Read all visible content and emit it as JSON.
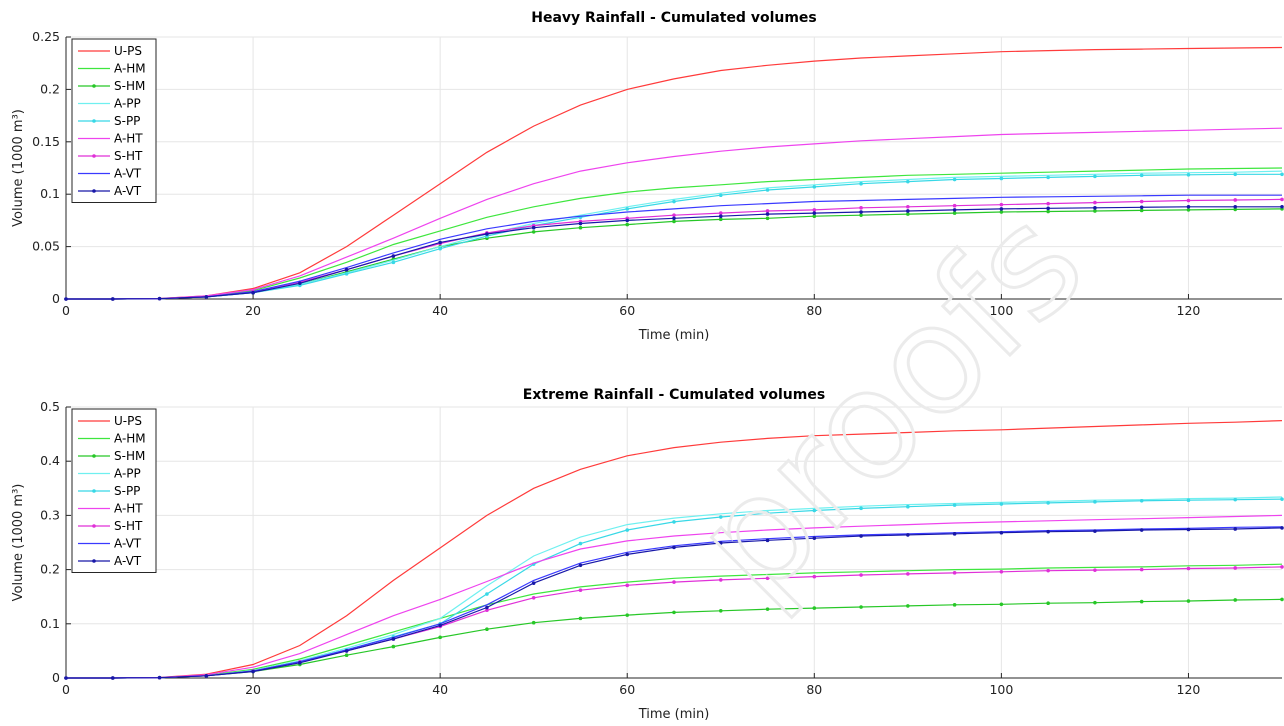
{
  "watermark_text": "proofs",
  "chart_data": [
    {
      "type": "line",
      "title": "Heavy Rainfall - Cumulated volumes",
      "xlabel": "Time (min)",
      "ylabel": "Volume (1000 m³)",
      "xlim": [
        0,
        130
      ],
      "ylim": [
        0,
        0.25
      ],
      "xticks": [
        0,
        20,
        40,
        60,
        80,
        100,
        120
      ],
      "xtick_labels": [
        "0",
        "20",
        "40",
        "60",
        "80",
        "100",
        "120"
      ],
      "yticks": [
        0,
        0.05,
        0.1,
        0.15,
        0.2,
        0.25
      ],
      "ytick_labels": [
        "0",
        "0.05",
        "0.1",
        "0.15",
        "0.2",
        "0.25"
      ],
      "grid": true,
      "legend_position": "top-left",
      "x": [
        0,
        5,
        10,
        15,
        20,
        25,
        30,
        35,
        40,
        45,
        50,
        55,
        60,
        65,
        70,
        75,
        80,
        85,
        90,
        95,
        100,
        105,
        110,
        115,
        120,
        125,
        130
      ],
      "series": [
        {
          "name": "U-PS",
          "color": "#ff3b3b",
          "marker": false,
          "values": [
            0,
            0,
            0.0005,
            0.003,
            0.01,
            0.025,
            0.05,
            0.08,
            0.11,
            0.14,
            0.165,
            0.185,
            0.2,
            0.21,
            0.218,
            0.223,
            0.227,
            0.23,
            0.232,
            0.234,
            0.236,
            0.237,
            0.238,
            0.2385,
            0.239,
            0.2395,
            0.24
          ]
        },
        {
          "name": "A-HM",
          "color": "#3ee63e",
          "marker": false,
          "values": [
            0,
            0,
            0.0004,
            0.002,
            0.008,
            0.02,
            0.035,
            0.052,
            0.065,
            0.078,
            0.088,
            0.096,
            0.102,
            0.106,
            0.109,
            0.112,
            0.114,
            0.116,
            0.118,
            0.119,
            0.12,
            0.121,
            0.122,
            0.123,
            0.124,
            0.1245,
            0.125
          ]
        },
        {
          "name": "S-HM",
          "color": "#27c727",
          "marker": true,
          "values": [
            0,
            0,
            0.0003,
            0.002,
            0.006,
            0.014,
            0.026,
            0.038,
            0.05,
            0.058,
            0.064,
            0.068,
            0.071,
            0.074,
            0.076,
            0.077,
            0.079,
            0.08,
            0.081,
            0.082,
            0.083,
            0.0835,
            0.084,
            0.0845,
            0.085,
            0.0855,
            0.086
          ]
        },
        {
          "name": "A-PP",
          "color": "#6ff0f0",
          "marker": false,
          "values": [
            0,
            0,
            0.0003,
            0.002,
            0.006,
            0.014,
            0.025,
            0.037,
            0.05,
            0.062,
            0.072,
            0.08,
            0.088,
            0.095,
            0.101,
            0.106,
            0.109,
            0.112,
            0.114,
            0.116,
            0.117,
            0.118,
            0.119,
            0.12,
            0.1205,
            0.121,
            0.122
          ]
        },
        {
          "name": "S-PP",
          "color": "#38d8e6",
          "marker": true,
          "values": [
            0,
            0,
            0.0003,
            0.002,
            0.006,
            0.013,
            0.024,
            0.035,
            0.048,
            0.06,
            0.07,
            0.078,
            0.086,
            0.093,
            0.099,
            0.104,
            0.107,
            0.11,
            0.112,
            0.114,
            0.115,
            0.116,
            0.117,
            0.118,
            0.1185,
            0.119,
            0.119
          ]
        },
        {
          "name": "A-HT",
          "color": "#ee44ee",
          "marker": false,
          "values": [
            0,
            0,
            0.0004,
            0.003,
            0.009,
            0.022,
            0.04,
            0.058,
            0.077,
            0.095,
            0.11,
            0.122,
            0.13,
            0.136,
            0.141,
            0.145,
            0.148,
            0.151,
            0.153,
            0.155,
            0.157,
            0.158,
            0.159,
            0.16,
            0.161,
            0.162,
            0.163
          ]
        },
        {
          "name": "S-HT",
          "color": "#e030d8",
          "marker": true,
          "values": [
            0,
            0,
            0.0003,
            0.002,
            0.007,
            0.016,
            0.028,
            0.041,
            0.053,
            0.063,
            0.07,
            0.074,
            0.077,
            0.08,
            0.082,
            0.084,
            0.085,
            0.087,
            0.088,
            0.089,
            0.09,
            0.091,
            0.092,
            0.093,
            0.094,
            0.0945,
            0.095
          ]
        },
        {
          "name": "A-VT",
          "color": "#3a3aff",
          "marker": false,
          "values": [
            0,
            0,
            0.0003,
            0.002,
            0.007,
            0.017,
            0.03,
            0.044,
            0.057,
            0.067,
            0.074,
            0.079,
            0.083,
            0.086,
            0.089,
            0.091,
            0.093,
            0.094,
            0.095,
            0.096,
            0.097,
            0.0975,
            0.098,
            0.0985,
            0.099,
            0.099,
            0.099
          ]
        },
        {
          "name": "A-VT",
          "color": "#1818a8",
          "marker": true,
          "values": [
            0,
            0,
            0.0003,
            0.002,
            0.006,
            0.015,
            0.028,
            0.041,
            0.054,
            0.062,
            0.068,
            0.072,
            0.075,
            0.077,
            0.079,
            0.081,
            0.082,
            0.083,
            0.084,
            0.085,
            0.086,
            0.0865,
            0.087,
            0.0875,
            0.088,
            0.088,
            0.088
          ]
        }
      ]
    },
    {
      "type": "line",
      "title": "Extreme Rainfall - Cumulated volumes",
      "xlabel": "Time (min)",
      "ylabel": "Volume (1000 m³)",
      "xlim": [
        0,
        130
      ],
      "ylim": [
        0,
        0.5
      ],
      "xticks": [
        0,
        20,
        40,
        60,
        80,
        100,
        120
      ],
      "xtick_labels": [
        "0",
        "20",
        "40",
        "60",
        "80",
        "100",
        "120"
      ],
      "yticks": [
        0,
        0.1,
        0.2,
        0.3,
        0.4,
        0.5
      ],
      "ytick_labels": [
        "0",
        "0.1",
        "0.2",
        "0.3",
        "0.4",
        "0.5"
      ],
      "grid": true,
      "legend_position": "top-left",
      "x": [
        0,
        5,
        10,
        15,
        20,
        25,
        30,
        35,
        40,
        45,
        50,
        55,
        60,
        65,
        70,
        75,
        80,
        85,
        90,
        95,
        100,
        105,
        110,
        115,
        120,
        125,
        130
      ],
      "series": [
        {
          "name": "U-PS",
          "color": "#ff3b3b",
          "marker": false,
          "values": [
            0,
            0,
            0.001,
            0.007,
            0.025,
            0.06,
            0.115,
            0.18,
            0.24,
            0.3,
            0.35,
            0.385,
            0.41,
            0.425,
            0.435,
            0.442,
            0.447,
            0.45,
            0.453,
            0.456,
            0.458,
            0.461,
            0.464,
            0.467,
            0.47,
            0.472,
            0.475
          ]
        },
        {
          "name": "A-HM",
          "color": "#3ee63e",
          "marker": false,
          "values": [
            0,
            0,
            0.0008,
            0.005,
            0.016,
            0.035,
            0.06,
            0.085,
            0.11,
            0.135,
            0.155,
            0.168,
            0.177,
            0.184,
            0.188,
            0.191,
            0.194,
            0.196,
            0.198,
            0.2,
            0.201,
            0.203,
            0.204,
            0.205,
            0.207,
            0.208,
            0.21
          ]
        },
        {
          "name": "S-HM",
          "color": "#27c727",
          "marker": true,
          "values": [
            0,
            0,
            0.0006,
            0.004,
            0.012,
            0.025,
            0.042,
            0.058,
            0.075,
            0.09,
            0.102,
            0.11,
            0.116,
            0.121,
            0.124,
            0.127,
            0.129,
            0.131,
            0.133,
            0.135,
            0.136,
            0.138,
            0.139,
            0.141,
            0.142,
            0.144,
            0.145
          ]
        },
        {
          "name": "A-PP",
          "color": "#6ff0f0",
          "marker": false,
          "values": [
            0,
            0,
            0.0006,
            0.004,
            0.014,
            0.032,
            0.055,
            0.08,
            0.11,
            0.17,
            0.225,
            0.26,
            0.283,
            0.295,
            0.303,
            0.309,
            0.313,
            0.317,
            0.32,
            0.322,
            0.324,
            0.326,
            0.328,
            0.329,
            0.331,
            0.332,
            0.334
          ]
        },
        {
          "name": "S-PP",
          "color": "#38d8e6",
          "marker": true,
          "values": [
            0,
            0,
            0.0006,
            0.004,
            0.013,
            0.03,
            0.052,
            0.076,
            0.1,
            0.155,
            0.21,
            0.248,
            0.273,
            0.288,
            0.297,
            0.304,
            0.309,
            0.313,
            0.316,
            0.319,
            0.321,
            0.323,
            0.325,
            0.327,
            0.328,
            0.329,
            0.33
          ]
        },
        {
          "name": "A-HT",
          "color": "#ee44ee",
          "marker": false,
          "values": [
            0,
            0,
            0.0008,
            0.006,
            0.02,
            0.045,
            0.08,
            0.115,
            0.145,
            0.178,
            0.212,
            0.238,
            0.253,
            0.262,
            0.268,
            0.273,
            0.277,
            0.28,
            0.283,
            0.286,
            0.288,
            0.29,
            0.292,
            0.294,
            0.296,
            0.298,
            0.3
          ]
        },
        {
          "name": "S-HT",
          "color": "#e030d8",
          "marker": true,
          "values": [
            0,
            0,
            0.0006,
            0.004,
            0.013,
            0.03,
            0.05,
            0.072,
            0.095,
            0.125,
            0.148,
            0.162,
            0.171,
            0.177,
            0.181,
            0.184,
            0.187,
            0.19,
            0.192,
            0.194,
            0.196,
            0.198,
            0.199,
            0.2,
            0.202,
            0.203,
            0.205
          ]
        },
        {
          "name": "A-VT",
          "color": "#3a3aff",
          "marker": false,
          "values": [
            0,
            0,
            0.0006,
            0.004,
            0.013,
            0.03,
            0.052,
            0.075,
            0.1,
            0.135,
            0.18,
            0.212,
            0.232,
            0.244,
            0.252,
            0.257,
            0.261,
            0.264,
            0.266,
            0.268,
            0.27,
            0.272,
            0.273,
            0.275,
            0.276,
            0.278,
            0.279
          ]
        },
        {
          "name": "A-VT",
          "color": "#1818a8",
          "marker": true,
          "values": [
            0,
            0,
            0.0006,
            0.004,
            0.012,
            0.028,
            0.05,
            0.072,
            0.097,
            0.13,
            0.175,
            0.208,
            0.228,
            0.241,
            0.249,
            0.254,
            0.258,
            0.262,
            0.264,
            0.266,
            0.268,
            0.27,
            0.271,
            0.273,
            0.274,
            0.275,
            0.277
          ]
        }
      ]
    }
  ]
}
